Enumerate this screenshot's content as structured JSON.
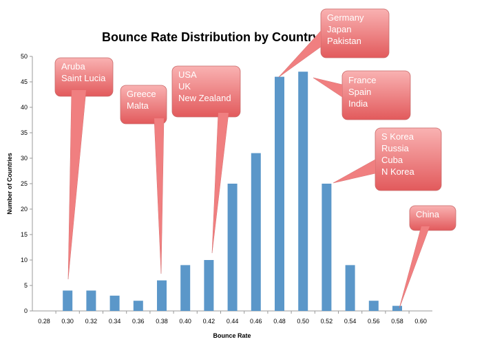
{
  "chart_data": {
    "type": "bar",
    "title": "Bounce Rate Distribution by Country",
    "xlabel": "Bounce Rate",
    "ylabel": "Number of Countries",
    "ylim": [
      0,
      50
    ],
    "yticks": [
      "0",
      "5",
      "10",
      "15",
      "20",
      "25",
      "30",
      "35",
      "40",
      "45",
      "50"
    ],
    "categories": [
      "0.28",
      "0.30",
      "0.32",
      "0.34",
      "0.36",
      "0.38",
      "0.40",
      "0.42",
      "0.44",
      "0.46",
      "0.48",
      "0.50",
      "0.52",
      "0.54",
      "0.56",
      "0.58",
      "0.60"
    ],
    "values": [
      0,
      4,
      4,
      3,
      2,
      6,
      9,
      10,
      25,
      31,
      46,
      47,
      25,
      9,
      2,
      1,
      0
    ],
    "bar_color": "#5b97c9",
    "grid": false,
    "legend": "none",
    "annotations": [
      {
        "category": "0.30",
        "lines": [
          "Aruba",
          "Saint Lucia"
        ]
      },
      {
        "category": "0.38",
        "lines": [
          "Greece",
          "Malta"
        ]
      },
      {
        "category": "0.42",
        "lines": [
          "USA",
          "UK",
          "New Zealand"
        ]
      },
      {
        "category": "0.48",
        "lines": [
          "Germany",
          "Japan",
          "Pakistan"
        ]
      },
      {
        "category": "0.50",
        "lines": [
          "France",
          "Spain",
          "India"
        ]
      },
      {
        "category": "0.52",
        "lines": [
          "S Korea",
          "Russia",
          "Cuba",
          "N Korea"
        ]
      },
      {
        "category": "0.58",
        "lines": [
          "China"
        ]
      }
    ],
    "callout_color": "#f07f80"
  }
}
